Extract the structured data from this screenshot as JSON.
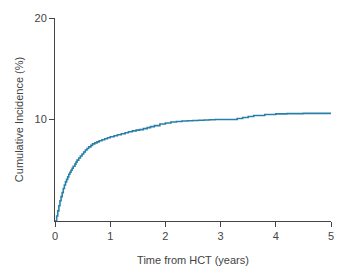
{
  "chart_data": {
    "type": "step",
    "xlabel": "Time from HCT (years)",
    "ylabel": "Cumulative Incidence (%)",
    "x": [
      0.0,
      0.03,
      0.05,
      0.07,
      0.09,
      0.11,
      0.13,
      0.15,
      0.17,
      0.19,
      0.21,
      0.23,
      0.25,
      0.27,
      0.29,
      0.31,
      0.33,
      0.36,
      0.38,
      0.4,
      0.43,
      0.46,
      0.49,
      0.52,
      0.55,
      0.58,
      0.61,
      0.65,
      0.68,
      0.72,
      0.76,
      0.8,
      0.85,
      0.9,
      0.95,
      1.0,
      1.07,
      1.13,
      1.2,
      1.27,
      1.33,
      1.4,
      1.47,
      1.53,
      1.6,
      1.67,
      1.73,
      1.8,
      1.9,
      2.0,
      2.1,
      2.2,
      2.3,
      2.4,
      2.5,
      2.6,
      2.7,
      2.8,
      2.9,
      3.0,
      3.1,
      3.2,
      3.3,
      3.4,
      3.5,
      3.6,
      3.8,
      4.0,
      4.2,
      4.5,
      5.0
    ],
    "values": [
      0.0,
      0.5,
      1.0,
      1.5,
      2.0,
      2.4,
      2.8,
      3.2,
      3.55,
      3.85,
      4.1,
      4.35,
      4.6,
      4.8,
      5.0,
      5.2,
      5.4,
      5.6,
      5.8,
      6.0,
      6.2,
      6.4,
      6.6,
      6.8,
      7.0,
      7.15,
      7.3,
      7.45,
      7.6,
      7.7,
      7.8,
      7.9,
      8.0,
      8.1,
      8.2,
      8.3,
      8.4,
      8.5,
      8.6,
      8.7,
      8.8,
      8.88,
      8.95,
      9.0,
      9.1,
      9.2,
      9.3,
      9.4,
      9.55,
      9.65,
      9.75,
      9.8,
      9.85,
      9.88,
      9.9,
      9.92,
      9.95,
      9.98,
      10.0,
      10.0,
      10.0,
      10.0,
      10.1,
      10.2,
      10.3,
      10.4,
      10.5,
      10.55,
      10.58,
      10.6,
      10.6
    ],
    "color": "#2a7fa8",
    "xlim": [
      0,
      5
    ],
    "ylim": [
      0,
      20
    ],
    "xticks": [
      0,
      1,
      2,
      3,
      4,
      5
    ],
    "yticks": [
      10,
      20
    ],
    "grid": false
  }
}
